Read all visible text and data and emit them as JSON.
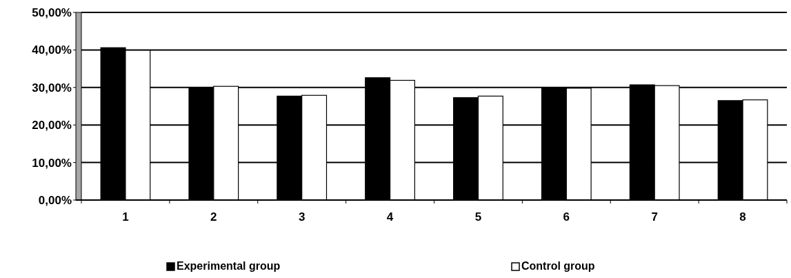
{
  "chart_data": {
    "type": "bar",
    "categories": [
      "1",
      "2",
      "3",
      "4",
      "5",
      "6",
      "7",
      "8"
    ],
    "series": [
      {
        "name": "Experimental group",
        "color": "#000000",
        "values": [
          40.6,
          30.0,
          27.7,
          32.6,
          27.3,
          30.0,
          30.7,
          26.5
        ]
      },
      {
        "name": "Control group",
        "color": "#ffffff",
        "values": [
          39.9,
          30.3,
          27.9,
          31.9,
          27.7,
          29.8,
          30.5,
          26.7
        ]
      }
    ],
    "ylim": [
      0,
      50
    ],
    "yticks": [
      {
        "value": 0,
        "label": "0,00%"
      },
      {
        "value": 10,
        "label": "10,00%"
      },
      {
        "value": 20,
        "label": "20,00%"
      },
      {
        "value": 30,
        "label": "30,00%"
      },
      {
        "value": 40,
        "label": "40,00%"
      },
      {
        "value": 50,
        "label": "50,00%"
      }
    ],
    "grid": "y",
    "legend": "bottom"
  }
}
